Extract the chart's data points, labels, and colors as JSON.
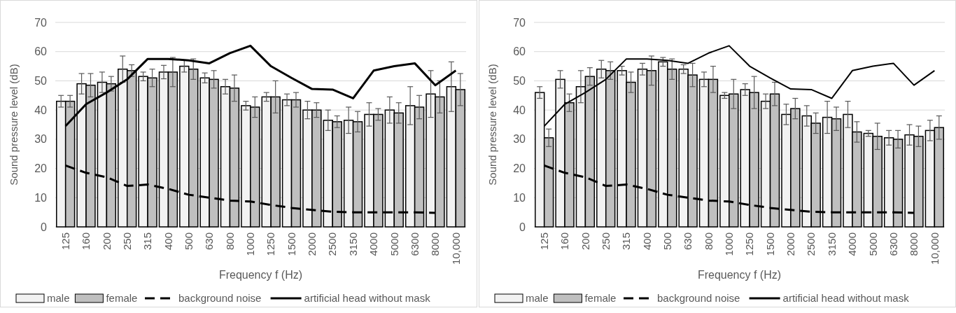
{
  "chart_data": [
    {
      "type": "bar",
      "xlabel": "Frequency f (Hz)",
      "ylabel": "Sound pressure level (dB)",
      "categories": [
        "125",
        "160",
        "200",
        "250",
        "315",
        "400",
        "500",
        "630",
        "800",
        "1000",
        "1250",
        "1500",
        "2000",
        "2500",
        "3150",
        "4000",
        "5000",
        "6300",
        "8000",
        "10,000"
      ],
      "ylim": [
        0,
        70
      ],
      "yticks": [
        0,
        10,
        20,
        30,
        40,
        50,
        60,
        70
      ],
      "grid": "y",
      "legend": "bottom",
      "series": [
        {
          "name": "male",
          "color": "#f2f2f2",
          "values": [
            43,
            49,
            49.5,
            54,
            51.5,
            53,
            55,
            51,
            48,
            41.5,
            44.5,
            43.5,
            40,
            36.5,
            36.5,
            38.5,
            40,
            41.5,
            45.5,
            48
          ],
          "errors": [
            2,
            3.5,
            3.5,
            4.5,
            1.5,
            2.3,
            2,
            1.7,
            2.5,
            1.5,
            1.5,
            2,
            3,
            3.5,
            4.5,
            4,
            4.5,
            6.5,
            8,
            8.5
          ]
        },
        {
          "name": "female",
          "color": "#bfbfbf",
          "values": [
            43,
            48.5,
            49,
            53.5,
            51,
            53,
            54,
            50.5,
            47.5,
            41,
            44.5,
            43.5,
            40,
            36,
            36,
            38.5,
            39,
            41,
            44.5,
            47
          ],
          "errors": [
            2,
            4,
            2.5,
            2,
            3,
            5,
            3.5,
            3,
            4.5,
            3.5,
            5.5,
            2.5,
            2.5,
            2,
            3.5,
            2,
            3.5,
            4,
            5.5,
            5.5
          ]
        },
        {
          "name": "background noise",
          "type": "line",
          "color": "#000000",
          "line_style": "dashed",
          "marker": "none",
          "values": [
            21,
            18.5,
            17,
            14,
            14.5,
            13,
            11,
            10,
            9,
            8.7,
            7.5,
            6.5,
            5.8,
            5.2,
            5,
            5,
            5,
            5,
            4.8,
            null
          ]
        },
        {
          "name": "artificial head without mask",
          "type": "line",
          "color": "#000000",
          "line_style": "solid",
          "marker": "none",
          "values": [
            34.5,
            42,
            46,
            50.5,
            57.5,
            57.5,
            57,
            56,
            59.5,
            62,
            55,
            51,
            47.2,
            47,
            44,
            53.5,
            55,
            56,
            48.5,
            53.5
          ]
        }
      ]
    },
    {
      "type": "bar",
      "xlabel": "Frequency f (Hz)",
      "ylabel": "Sound pressure level (dB)",
      "categories": [
        "125",
        "160",
        "200",
        "250",
        "315",
        "400",
        "500",
        "630",
        "800",
        "1000",
        "1250",
        "1500",
        "2000",
        "2500",
        "3150",
        "4000",
        "5000",
        "6300",
        "8000",
        "10,000"
      ],
      "ylim": [
        0,
        70
      ],
      "yticks": [
        0,
        10,
        20,
        30,
        40,
        50,
        60,
        70
      ],
      "grid": "y",
      "legend": "bottom",
      "series": [
        {
          "name": "male",
          "color": "#f2f2f2",
          "values": [
            46,
            50.5,
            48,
            54,
            53.5,
            54,
            56.5,
            54,
            50.5,
            45,
            47,
            43,
            38.5,
            38,
            37.5,
            38.5,
            32,
            30.5,
            31.5,
            33
          ],
          "errors": [
            2,
            3,
            5.5,
            3,
            1.5,
            2,
            1.5,
            1.5,
            2.5,
            1,
            2,
            2.5,
            3.5,
            3.5,
            5.5,
            4.5,
            1,
            2.5,
            3.5,
            3.5
          ]
        },
        {
          "name": "female",
          "color": "#bfbfbf",
          "values": [
            30.5,
            42.5,
            51.5,
            53.5,
            49.5,
            53.5,
            54,
            52,
            50.5,
            45.5,
            46,
            45.5,
            40.5,
            35.5,
            37,
            32.5,
            31,
            30,
            31,
            34
          ],
          "errors": [
            3,
            3,
            3,
            3,
            3.5,
            5,
            3.5,
            4,
            4.5,
            5,
            5.5,
            4,
            3.5,
            3.5,
            4,
            3.5,
            4.5,
            3,
            3.5,
            4
          ]
        },
        {
          "name": "background noise",
          "type": "line",
          "color": "#000000",
          "line_style": "dashed",
          "marker": "none",
          "values": [
            21,
            18.5,
            17,
            14,
            14.5,
            13,
            11,
            10,
            9,
            8.7,
            7.5,
            6.5,
            5.8,
            5.2,
            5,
            5,
            5,
            5,
            4.8,
            null
          ]
        },
        {
          "name": "artificial head without mask",
          "type": "line",
          "color": "#000000",
          "line_style": "solid",
          "marker": "none",
          "values": [
            34.5,
            42,
            46,
            50.5,
            57.5,
            57.5,
            57,
            56,
            59.5,
            62,
            55,
            51,
            47.2,
            47,
            44,
            53.5,
            55,
            56,
            48.5,
            53.5
          ]
        }
      ]
    }
  ]
}
